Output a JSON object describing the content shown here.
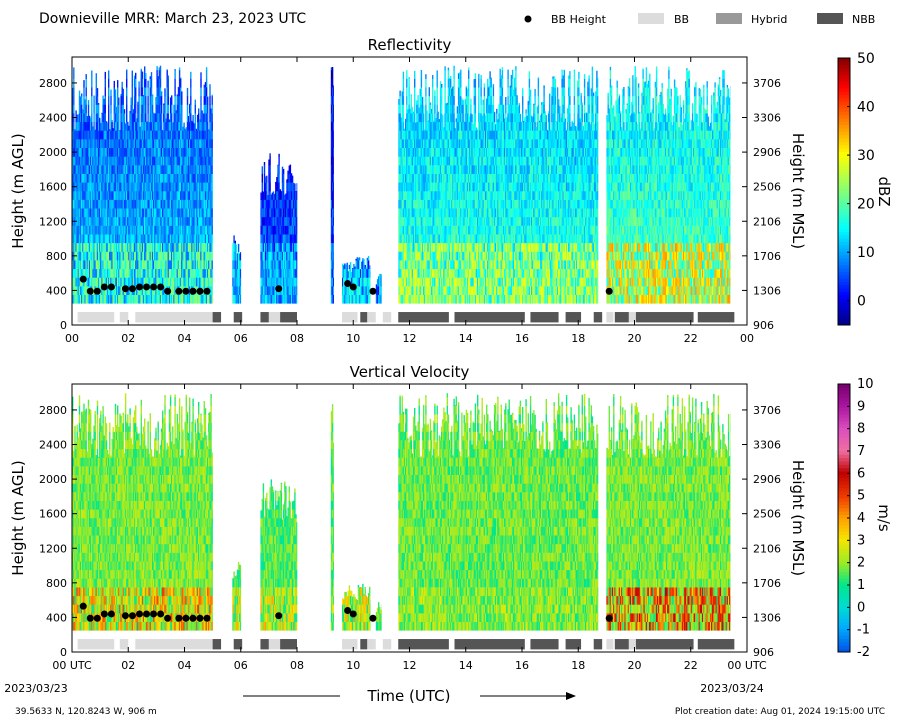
{
  "header": {
    "title": "Downieville MRR:  March 23, 2023 UTC",
    "legend": [
      {
        "label": "BB Height",
        "kind": "dot",
        "color": "#000000"
      },
      {
        "label": "BB",
        "kind": "swatch",
        "color": "#dcdcdc"
      },
      {
        "label": "Hybrid",
        "kind": "swatch",
        "color": "#999999"
      },
      {
        "label": "NBB",
        "kind": "swatch",
        "color": "#555555"
      }
    ]
  },
  "footer": {
    "location": "39.5633 N, 120.8243 W, 906 m",
    "creation": "Plot creation date: Aug 01, 2024 19:15:00 UTC",
    "time_label": "Time (UTC)",
    "start_date": "2023/03/23",
    "end_date": "2023/03/24"
  },
  "chart_data": [
    {
      "type": "heatmap",
      "title": "Reflectivity",
      "ylabel": "Height (m AGL)",
      "ylabel_right": "Height (m MSL)",
      "xlim": [
        0,
        24
      ],
      "ylim": [
        0,
        3100
      ],
      "xticks": [
        "00",
        "02",
        "04",
        "06",
        "08",
        "10",
        "12",
        "14",
        "16",
        "18",
        "20",
        "22",
        "00"
      ],
      "yticks": [
        0,
        400,
        800,
        1200,
        1600,
        2000,
        2400,
        2800
      ],
      "yticks_right": [
        "906",
        "1306",
        "1706",
        "2106",
        "2506",
        "2906",
        "3306",
        "3706"
      ],
      "colorbar": {
        "label": "dBZ",
        "min": -5,
        "max": 50,
        "ticks": [
          0,
          10,
          20,
          30,
          40,
          50
        ],
        "colormap": "jet"
      },
      "echo_periods": [
        {
          "start": 0.0,
          "end": 5.0,
          "top": 3000,
          "level": 12,
          "core": 24
        },
        {
          "start": 5.7,
          "end": 6.0,
          "top": 1100,
          "level": 10,
          "core": 18
        },
        {
          "start": 6.7,
          "end": 8.0,
          "top": 2000,
          "level": 8,
          "core": 16
        },
        {
          "start": 9.2,
          "end": 9.3,
          "top": 3000,
          "level": 6,
          "core": 12
        },
        {
          "start": 9.6,
          "end": 10.6,
          "top": 800,
          "level": 10,
          "core": 18
        },
        {
          "start": 10.8,
          "end": 11.0,
          "top": 600,
          "level": 8,
          "core": 14
        },
        {
          "start": 11.6,
          "end": 18.7,
          "top": 3000,
          "level": 18,
          "core": 30
        },
        {
          "start": 19.0,
          "end": 23.4,
          "top": 3000,
          "level": 20,
          "core": 36
        }
      ],
      "bb_height_points": [
        {
          "t": 0.4,
          "h": 530
        },
        {
          "t": 0.65,
          "h": 390
        },
        {
          "t": 0.9,
          "h": 390
        },
        {
          "t": 1.15,
          "h": 440
        },
        {
          "t": 1.4,
          "h": 440
        },
        {
          "t": 1.9,
          "h": 420
        },
        {
          "t": 2.15,
          "h": 420
        },
        {
          "t": 2.4,
          "h": 440
        },
        {
          "t": 2.65,
          "h": 440
        },
        {
          "t": 2.9,
          "h": 440
        },
        {
          "t": 3.15,
          "h": 440
        },
        {
          "t": 3.4,
          "h": 390
        },
        {
          "t": 3.8,
          "h": 390
        },
        {
          "t": 4.05,
          "h": 390
        },
        {
          "t": 4.3,
          "h": 390
        },
        {
          "t": 4.55,
          "h": 390
        },
        {
          "t": 4.8,
          "h": 390
        },
        {
          "t": 7.35,
          "h": 420
        },
        {
          "t": 9.8,
          "h": 480
        },
        {
          "t": 10.0,
          "h": 440
        },
        {
          "t": 10.7,
          "h": 390
        },
        {
          "t": 19.1,
          "h": 390
        }
      ],
      "bb_category_bars": [
        {
          "start": 0.2,
          "end": 1.5,
          "category": "BB"
        },
        {
          "start": 1.7,
          "end": 2.0,
          "category": "BB"
        },
        {
          "start": 2.25,
          "end": 5.0,
          "category": "BB"
        },
        {
          "start": 5.0,
          "end": 5.3,
          "category": "NBB"
        },
        {
          "start": 5.75,
          "end": 6.05,
          "category": "NBB"
        },
        {
          "start": 6.7,
          "end": 7.0,
          "category": "NBB"
        },
        {
          "start": 7.0,
          "end": 7.4,
          "category": "BB"
        },
        {
          "start": 7.4,
          "end": 8.0,
          "category": "NBB"
        },
        {
          "start": 9.6,
          "end": 10.15,
          "category": "BB"
        },
        {
          "start": 10.25,
          "end": 10.5,
          "category": "NBB"
        },
        {
          "start": 10.5,
          "end": 10.8,
          "category": "BB"
        },
        {
          "start": 11.05,
          "end": 11.35,
          "category": "BB"
        },
        {
          "start": 11.6,
          "end": 13.4,
          "category": "NBB"
        },
        {
          "start": 13.6,
          "end": 16.1,
          "category": "NBB"
        },
        {
          "start": 16.3,
          "end": 17.3,
          "category": "NBB"
        },
        {
          "start": 17.55,
          "end": 18.1,
          "category": "NBB"
        },
        {
          "start": 18.55,
          "end": 18.85,
          "category": "NBB"
        },
        {
          "start": 19.0,
          "end": 19.25,
          "category": "BB"
        },
        {
          "start": 19.3,
          "end": 19.8,
          "category": "NBB"
        },
        {
          "start": 19.8,
          "end": 20.05,
          "category": "BB"
        },
        {
          "start": 20.05,
          "end": 22.1,
          "category": "NBB"
        },
        {
          "start": 22.25,
          "end": 23.55,
          "category": "NBB"
        }
      ]
    },
    {
      "type": "heatmap",
      "title": "Vertical Velocity",
      "ylabel": "Height (m AGL)",
      "ylabel_right": "Height (m MSL)",
      "xlabel": "Time (UTC)",
      "xlim": [
        0,
        24
      ],
      "ylim": [
        0,
        3100
      ],
      "xticks": [
        "00 UTC",
        "02",
        "04",
        "06",
        "08",
        "10",
        "12",
        "14",
        "16",
        "18",
        "20",
        "22",
        "00 UTC"
      ],
      "yticks": [
        0,
        400,
        800,
        1200,
        1600,
        2000,
        2400,
        2800
      ],
      "yticks_right": [
        "906",
        "1306",
        "1706",
        "2106",
        "2506",
        "2906",
        "3306",
        "3706"
      ],
      "colorbar": {
        "label": "m/s",
        "min": -2,
        "max": 10,
        "ticks": [
          -2,
          -1,
          0,
          1,
          2,
          3,
          4,
          5,
          6,
          7,
          8,
          9,
          10
        ],
        "colormap": "velocity"
      },
      "echo_periods": [
        {
          "start": 0.0,
          "end": 5.0,
          "top": 3000,
          "level": 1.8,
          "core": 5
        },
        {
          "start": 5.7,
          "end": 6.0,
          "top": 1100,
          "level": 1.5,
          "core": 4
        },
        {
          "start": 6.7,
          "end": 8.0,
          "top": 2000,
          "level": 1.5,
          "core": 4
        },
        {
          "start": 9.2,
          "end": 9.3,
          "top": 3000,
          "level": 1.5,
          "core": 3
        },
        {
          "start": 9.6,
          "end": 10.6,
          "top": 800,
          "level": 1.5,
          "core": 4
        },
        {
          "start": 10.8,
          "end": 11.0,
          "top": 600,
          "level": 1.5,
          "core": 3
        },
        {
          "start": 11.6,
          "end": 18.7,
          "top": 3000,
          "level": 1.7,
          "core": 3
        },
        {
          "start": 19.0,
          "end": 23.4,
          "top": 3000,
          "level": 1.8,
          "core": 6
        }
      ],
      "bb_height_points": [
        {
          "t": 0.4,
          "h": 530
        },
        {
          "t": 0.65,
          "h": 390
        },
        {
          "t": 0.9,
          "h": 390
        },
        {
          "t": 1.15,
          "h": 440
        },
        {
          "t": 1.4,
          "h": 440
        },
        {
          "t": 1.9,
          "h": 420
        },
        {
          "t": 2.15,
          "h": 420
        },
        {
          "t": 2.4,
          "h": 440
        },
        {
          "t": 2.65,
          "h": 440
        },
        {
          "t": 2.9,
          "h": 440
        },
        {
          "t": 3.15,
          "h": 440
        },
        {
          "t": 3.4,
          "h": 390
        },
        {
          "t": 3.8,
          "h": 390
        },
        {
          "t": 4.05,
          "h": 390
        },
        {
          "t": 4.3,
          "h": 390
        },
        {
          "t": 4.55,
          "h": 390
        },
        {
          "t": 4.8,
          "h": 390
        },
        {
          "t": 7.35,
          "h": 420
        },
        {
          "t": 9.8,
          "h": 480
        },
        {
          "t": 10.0,
          "h": 440
        },
        {
          "t": 10.7,
          "h": 390
        },
        {
          "t": 19.1,
          "h": 390
        }
      ],
      "bb_category_bars": [
        {
          "start": 0.2,
          "end": 1.5,
          "category": "BB"
        },
        {
          "start": 1.7,
          "end": 2.0,
          "category": "BB"
        },
        {
          "start": 2.25,
          "end": 5.0,
          "category": "BB"
        },
        {
          "start": 5.0,
          "end": 5.3,
          "category": "NBB"
        },
        {
          "start": 5.75,
          "end": 6.05,
          "category": "NBB"
        },
        {
          "start": 6.7,
          "end": 7.0,
          "category": "NBB"
        },
        {
          "start": 7.0,
          "end": 7.4,
          "category": "BB"
        },
        {
          "start": 7.4,
          "end": 8.0,
          "category": "NBB"
        },
        {
          "start": 9.6,
          "end": 10.15,
          "category": "BB"
        },
        {
          "start": 10.25,
          "end": 10.5,
          "category": "NBB"
        },
        {
          "start": 10.5,
          "end": 10.8,
          "category": "BB"
        },
        {
          "start": 11.05,
          "end": 11.35,
          "category": "BB"
        },
        {
          "start": 11.6,
          "end": 13.4,
          "category": "NBB"
        },
        {
          "start": 13.6,
          "end": 16.1,
          "category": "NBB"
        },
        {
          "start": 16.3,
          "end": 17.3,
          "category": "NBB"
        },
        {
          "start": 17.55,
          "end": 18.1,
          "category": "NBB"
        },
        {
          "start": 18.55,
          "end": 18.85,
          "category": "NBB"
        },
        {
          "start": 19.0,
          "end": 19.25,
          "category": "BB"
        },
        {
          "start": 19.3,
          "end": 19.8,
          "category": "NBB"
        },
        {
          "start": 19.8,
          "end": 20.05,
          "category": "BB"
        },
        {
          "start": 20.05,
          "end": 22.1,
          "category": "NBB"
        },
        {
          "start": 22.25,
          "end": 23.55,
          "category": "NBB"
        }
      ]
    }
  ]
}
